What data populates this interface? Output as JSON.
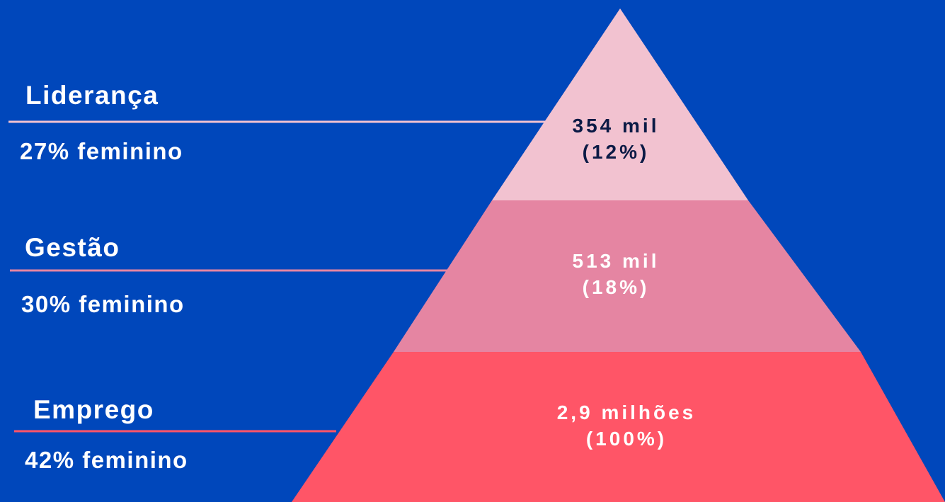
{
  "colors": {
    "background": "#0047bb",
    "tier_top": "#f2c2d0",
    "tier_middle": "#e585a2",
    "tier_bottom": "#ff5567",
    "text_dark": "#0b1a45",
    "text_light": "#ffffff"
  },
  "levels": [
    {
      "title": "Liderança",
      "share": "27% feminino",
      "value": "354 mil",
      "percent": "(12%)"
    },
    {
      "title": "Gestão",
      "share": "30% feminino",
      "value": "513 mil",
      "percent": "(18%)"
    },
    {
      "title": "Emprego",
      "share": "42% feminino",
      "value": "2,9 milhões",
      "percent": "(100%)"
    }
  ]
}
